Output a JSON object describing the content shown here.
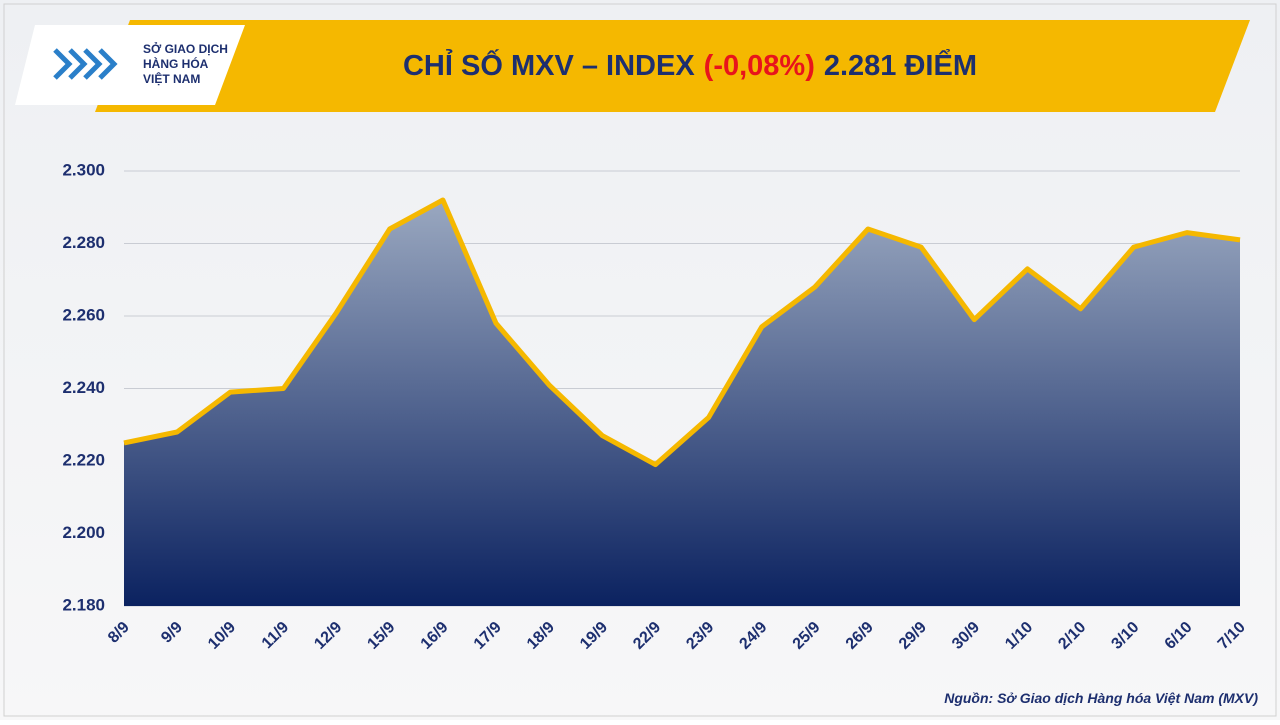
{
  "logo": {
    "lines": [
      "SỞ GIAO DỊCH",
      "HÀNG HÓA",
      "VIỆT NAM"
    ]
  },
  "chart_data": {
    "type": "area",
    "title": "CHỈ SỐ MXV – INDEX",
    "title_change": "(-0,08%)",
    "title_value": "2.281 ĐIỂM",
    "source": "Nguồn: Sở Giao dịch Hàng hóa Việt Nam (MXV)",
    "categories": [
      "8/9",
      "9/9",
      "10/9",
      "11/9",
      "12/9",
      "15/9",
      "16/9",
      "17/9",
      "18/9",
      "19/9",
      "22/9",
      "23/9",
      "24/9",
      "25/9",
      "26/9",
      "29/9",
      "30/9",
      "1/10",
      "2/10",
      "3/10",
      "6/10",
      "7/10"
    ],
    "values": [
      2225,
      2228,
      2239,
      2240,
      2261,
      2284,
      2292,
      2258,
      2241,
      2227,
      2219,
      2232,
      2257,
      2268,
      2284,
      2279,
      2259,
      2273,
      2262,
      2279,
      2283,
      2281
    ],
    "color": "#f5b800",
    "fill_colors": [
      "#9aa8c0",
      "#0b2260"
    ],
    "ylim": [
      2180,
      2300
    ],
    "yticks": [
      {
        "value": 2180,
        "label": "2.180"
      },
      {
        "value": 2200,
        "label": "2.200"
      },
      {
        "value": 2220,
        "label": "2.220"
      },
      {
        "value": 2240,
        "label": "2.240"
      },
      {
        "value": 2260,
        "label": "2.260"
      },
      {
        "value": 2280,
        "label": "2.280"
      },
      {
        "value": 2300,
        "label": "2.300"
      }
    ],
    "grid": true
  }
}
